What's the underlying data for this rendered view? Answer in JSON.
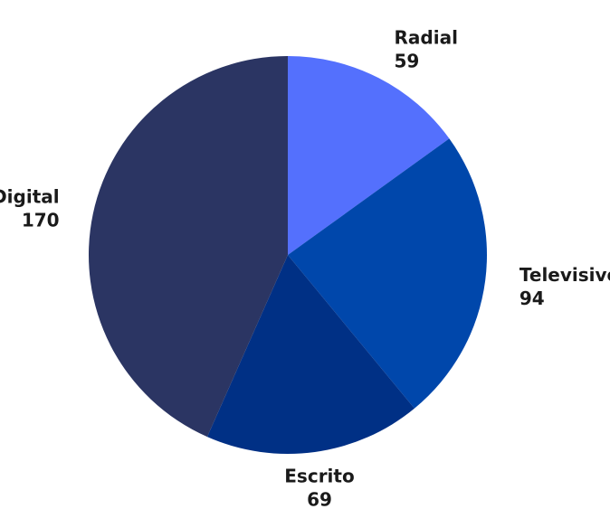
{
  "chart_data": {
    "type": "pie",
    "title": "",
    "slices": [
      {
        "label": "Radial",
        "value": 59,
        "color": "#5470fd"
      },
      {
        "label": "Televisivo",
        "value": 94,
        "color": "#0047ab"
      },
      {
        "label": "Escrito",
        "value": 69,
        "color": "#003085"
      },
      {
        "label": "Digital",
        "value": 170,
        "color": "#2b3563"
      }
    ],
    "start_angle_deg": 0,
    "direction": "clockwise",
    "legend": "none",
    "data_labels": "outside"
  }
}
